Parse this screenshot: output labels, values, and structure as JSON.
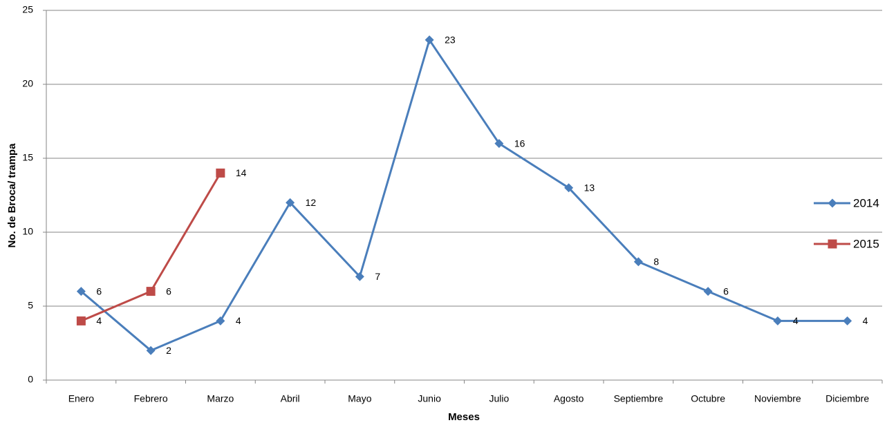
{
  "chart_data": {
    "type": "line",
    "x_label": "Meses",
    "y_label": "No. de Broca/ trampa",
    "categories": [
      "Enero",
      "Febrero",
      "Marzo",
      "Abril",
      "Mayo",
      "Junio",
      "Julio",
      "Agosto",
      "Septiembre",
      "Octubre",
      "Noviembre",
      "Diciembre"
    ],
    "series": [
      {
        "name": "2014",
        "color": "#4a7ebb",
        "marker": "diamond",
        "values": [
          6,
          2,
          4,
          12,
          7,
          23,
          16,
          13,
          8,
          6,
          4,
          4
        ]
      },
      {
        "name": "2015",
        "color": "#be4b48",
        "marker": "square",
        "values": [
          4,
          6,
          14,
          null,
          null,
          null,
          null,
          null,
          null,
          null,
          null,
          null
        ]
      }
    ],
    "ylim": [
      0,
      25
    ],
    "yticks": [
      0,
      5,
      10,
      15,
      20,
      25
    ],
    "grid": true,
    "legend": "right",
    "data_labels": true
  }
}
